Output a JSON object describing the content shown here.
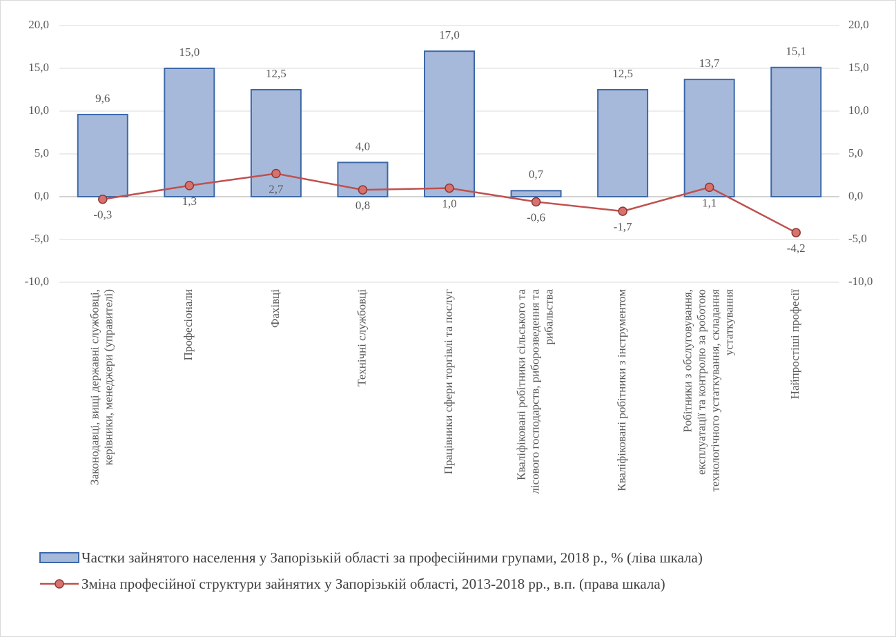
{
  "chart_data": {
    "type": "bar-line",
    "categories": [
      [
        "Законодавці, вищі державні службовці,",
        "керівники, менеджери (управителі)"
      ],
      [
        "Професіонали"
      ],
      [
        "Фахівці"
      ],
      [
        "Технічні  службовці"
      ],
      [
        "Працівники  сфери торгівлі та послуг"
      ],
      [
        "Кваліфіковані робітники сільського та",
        "лісового господарств, риборозведення та",
        "рибальства"
      ],
      [
        "Кваліфіковані робітники з інструментом"
      ],
      [
        "Робітники з обслуговування,",
        "експлуатації  та контролю за роботою",
        "технологічного устаткування,  складання",
        "устаткування"
      ],
      [
        "Найпростіші професії"
      ]
    ],
    "series": [
      {
        "name": "Частки зайнятого населення у Запорізькій області  за професійними групами, 2018 р., % (ліва шкала)",
        "type": "bar",
        "color": "#a7b9da",
        "values": [
          9.6,
          15.0,
          12.5,
          4.0,
          17.0,
          0.7,
          12.5,
          13.7,
          15.1
        ],
        "value_labels": [
          "9,6",
          "15,0",
          "12,5",
          "4,0",
          "17,0",
          "0,7",
          "12,5",
          "13,7",
          "15,1"
        ]
      },
      {
        "name": "Зміна професійної структури зайнятих у Запорізькій області, 2013-2018 рр., в.п. (права шкала)",
        "type": "line",
        "axis": "y2",
        "color": "#c0504d",
        "values": [
          -0.3,
          1.3,
          2.7,
          0.8,
          1.0,
          -0.6,
          -1.7,
          1.1,
          -4.2
        ],
        "value_labels": [
          "-0,3",
          "1,3",
          "2,7",
          "0,8",
          "1,0",
          "-0,6",
          "-1,7",
          "1,1",
          "-4,2"
        ]
      }
    ],
    "ylim": [
      -10,
      20
    ],
    "yticks": [
      {
        "value": -10,
        "label": "-10,0"
      },
      {
        "value": -5,
        "label": "-5,0"
      },
      {
        "value": 0,
        "label": "0,0"
      },
      {
        "value": 5,
        "label": "5,0"
      },
      {
        "value": 10,
        "label": "10,0"
      },
      {
        "value": 15,
        "label": "15,0"
      },
      {
        "value": 20,
        "label": "20,0"
      }
    ],
    "y2lim": [
      -10,
      20
    ],
    "y2ticks": [
      {
        "value": -10,
        "label": "-10,0"
      },
      {
        "value": -5,
        "label": "-5,0"
      },
      {
        "value": 0,
        "label": "0,0"
      },
      {
        "value": 5,
        "label": "5,0"
      },
      {
        "value": 10,
        "label": "10,0"
      },
      {
        "value": 15,
        "label": "15,0"
      },
      {
        "value": 20,
        "label": "20,0"
      }
    ],
    "grid": true,
    "legend": "bottom"
  }
}
